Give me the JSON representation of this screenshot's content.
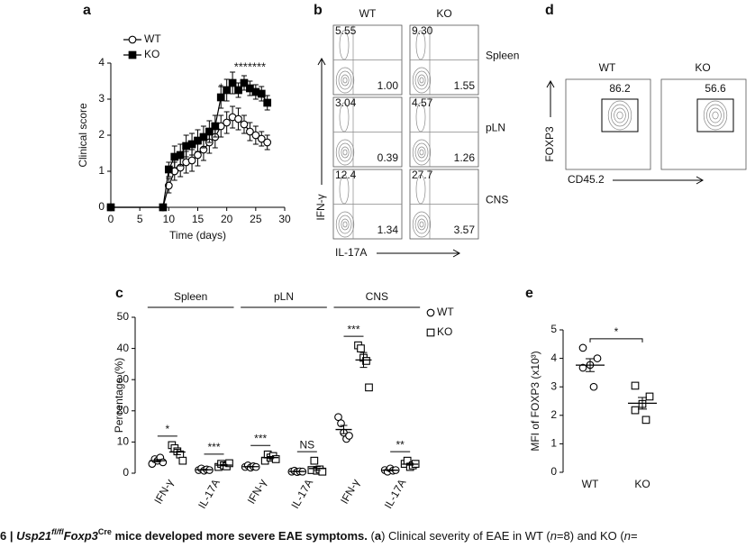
{
  "panel_labels": [
    "a",
    "b",
    "c",
    "d",
    "e"
  ],
  "chart_data": [
    {
      "type": "line",
      "xlabel": "Time (days)",
      "ylabel": "Clinical score",
      "x": [
        0,
        9,
        10,
        11,
        12,
        13,
        14,
        15,
        16,
        17,
        18,
        19,
        20,
        21,
        22,
        23,
        24,
        25,
        26,
        27
      ],
      "xlim": [
        0,
        30
      ],
      "xticks": [
        0,
        5,
        10,
        15,
        20,
        25,
        30
      ],
      "ylim": [
        0,
        4
      ],
      "yticks": [
        0,
        1,
        2,
        3,
        4
      ],
      "legend": "top-left",
      "series": [
        {
          "name": "WT",
          "color": "#000000",
          "marker": "open-circle",
          "values": [
            0,
            0,
            0.6,
            1.0,
            1.1,
            1.25,
            1.3,
            1.45,
            1.6,
            1.8,
            1.95,
            2.25,
            2.35,
            2.5,
            2.45,
            2.3,
            2.1,
            2.0,
            1.9,
            1.8
          ],
          "errors": [
            0,
            0,
            0.2,
            0.25,
            0.25,
            0.3,
            0.3,
            0.3,
            0.3,
            0.3,
            0.3,
            0.3,
            0.3,
            0.3,
            0.3,
            0.25,
            0.25,
            0.25,
            0.2,
            0.2
          ]
        },
        {
          "name": "KO",
          "color": "#000000",
          "marker": "filled-square",
          "values": [
            0,
            0,
            1.05,
            1.4,
            1.45,
            1.7,
            1.75,
            1.85,
            1.95,
            2.1,
            2.25,
            3.05,
            3.25,
            3.45,
            3.25,
            3.45,
            3.3,
            3.2,
            3.15,
            2.9
          ],
          "errors": [
            0,
            0,
            0.2,
            0.3,
            0.3,
            0.3,
            0.3,
            0.3,
            0.3,
            0.3,
            0.3,
            0.3,
            0.3,
            0.3,
            0.2,
            0.2,
            0.2,
            0.2,
            0.2,
            0.2
          ]
        }
      ],
      "annotations": [
        {
          "text": "*",
          "x": 19
        },
        {
          "text": "*******",
          "x": 24
        }
      ]
    },
    {
      "type": "dot",
      "ylabel": "Percentage (%)",
      "ylim": [
        0,
        50
      ],
      "yticks": [
        0,
        10,
        20,
        30,
        40,
        50
      ],
      "groups": [
        "Spleen",
        "pLN",
        "CNS"
      ],
      "categories": [
        "IFN-γ",
        "IL-17A",
        "IFN-γ",
        "IL-17A",
        "IFN-γ",
        "IL-17A"
      ],
      "legend": "top-right",
      "series": [
        {
          "name": "WT",
          "color": "#000000",
          "marker": "circle",
          "values": [
            [
              3,
              4.5,
              4,
              5,
              3.5
            ],
            [
              1,
              1.5,
              0.8,
              1.2,
              1
            ],
            [
              2,
              2.5,
              1.8,
              2.2,
              2
            ],
            [
              0.5,
              0.8,
              0.4,
              0.6,
              0.5
            ],
            [
              18,
              16,
              13,
              11,
              12
            ],
            [
              1,
              0.5,
              1.5,
              0.8,
              1
            ]
          ]
        },
        {
          "name": "KO",
          "color": "#000000",
          "marker": "square",
          "values": [
            [
              9,
              8,
              7,
              6,
              4
            ],
            [
              2,
              3,
              2.5,
              2.2,
              3.2
            ],
            [
              4,
              6,
              5,
              5.5,
              4.5
            ],
            [
              1,
              4,
              0.8,
              1.2,
              0.5
            ],
            [
              41,
              40,
              37,
              36,
              27.5
            ],
            [
              3,
              4,
              2,
              2.5,
              3
            ]
          ]
        }
      ],
      "significance": [
        "*",
        "***",
        "***",
        "NS",
        "***",
        "**"
      ]
    },
    {
      "type": "strip",
      "ylabel": "MFI of FOXP3 (x10³)",
      "ylim": [
        0,
        5
      ],
      "yticks": [
        0,
        1,
        2,
        3,
        4,
        5
      ],
      "categories": [
        "WT",
        "KO"
      ],
      "markers": [
        "circle",
        "square"
      ],
      "color": "#000000",
      "values": [
        [
          4.37,
          4.0,
          3.77,
          3.67,
          3.0
        ],
        [
          3.04,
          2.66,
          2.4,
          2.18,
          1.84
        ]
      ],
      "significance": [
        "*"
      ]
    }
  ],
  "flow_b": {
    "columns": [
      "WT",
      "KO"
    ],
    "rows": [
      "Spleen",
      "pLN",
      "CNS"
    ],
    "x_label": "IL-17A",
    "y_label": "IFN-γ",
    "quadrants": [
      [
        [
          "5.55",
          "1.00"
        ],
        [
          "9.30",
          "1.55"
        ]
      ],
      [
        [
          "3.04",
          "0.39"
        ],
        [
          "4.57",
          "1.26"
        ]
      ],
      [
        [
          "12.4",
          "1.34"
        ],
        [
          "27.7",
          "3.57"
        ]
      ]
    ]
  },
  "flow_d": {
    "columns": [
      "WT",
      "KO"
    ],
    "gates": [
      "86.2",
      "56.6"
    ],
    "x_label": "CD45.2",
    "y_label": "FOXP3"
  },
  "caption": {
    "figure": "6 | ",
    "gene1": "Usp21",
    "sup1": "fl/fl",
    "gene2": "Foxp3",
    "sup2": "Cre",
    "title": " mice developed more severe EAE symptoms.",
    "body": [
      " (",
      "a",
      ") Clinical severity of EAE in WT (",
      "n",
      "=8) and KO (",
      "n",
      "="
    ]
  }
}
